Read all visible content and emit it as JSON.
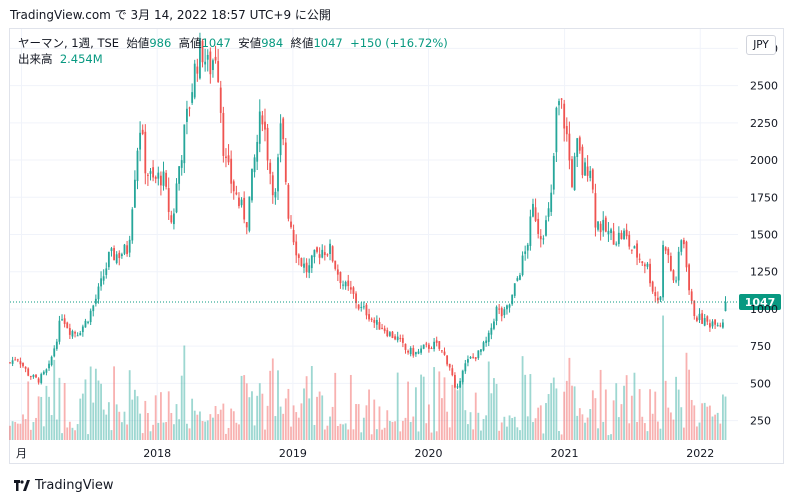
{
  "header": {
    "source": "TradingView.com",
    "date_text": "で 3月 14, 2022 18:57 UTC+9 に公開"
  },
  "legend": {
    "symbol": "ヤーマン, 1週, TSE",
    "open_label": "始値",
    "open": "986",
    "high_label": "高値",
    "high": "1047",
    "low_label": "安値",
    "low": "984",
    "close_label": "終値",
    "close": "1047",
    "change": "+150 (+16.72%)",
    "volume_label": "出来高",
    "volume": "2.454M"
  },
  "currency": "JPY",
  "footer": {
    "brand": "TradingView"
  },
  "colors": {
    "up": "#26a69a",
    "down": "#ef5350",
    "price_line": "#089981",
    "grid": "#f0f3fa"
  },
  "chart_data": {
    "type": "candlestick",
    "price_label": "1047",
    "ylim": [
      120,
      2880
    ],
    "y_ticks": [
      250,
      500,
      750,
      1000,
      1250,
      1500,
      1750,
      2000,
      2250,
      2500,
      2750
    ],
    "x_ticks": [
      {
        "label": "月",
        "date": "2017-01"
      },
      {
        "label": "2018",
        "date": "2018-01"
      },
      {
        "label": "2019",
        "date": "2019-01"
      },
      {
        "label": "2020",
        "date": "2020-01"
      },
      {
        "label": "2021",
        "date": "2021-01"
      },
      {
        "label": "2022",
        "date": "2022-01"
      }
    ],
    "price_path": [
      [
        "2016-12-01",
        640
      ],
      [
        "2016-12-20",
        680
      ],
      [
        "2017-01-20",
        560
      ],
      [
        "2017-02-15",
        520
      ],
      [
        "2017-03-15",
        600
      ],
      [
        "2017-04-01",
        760
      ],
      [
        "2017-04-20",
        960
      ],
      [
        "2017-05-10",
        860
      ],
      [
        "2017-05-30",
        840
      ],
      [
        "2017-06-20",
        900
      ],
      [
        "2017-07-10",
        1000
      ],
      [
        "2017-08-01",
        1150
      ],
      [
        "2017-08-25",
        1350
      ],
      [
        "2017-09-20",
        1370
      ],
      [
        "2017-10-15",
        1400
      ],
      [
        "2017-11-01",
        1900
      ],
      [
        "2017-11-15",
        2250
      ],
      [
        "2017-12-01",
        1950
      ],
      [
        "2017-12-20",
        1850
      ],
      [
        "2018-01-15",
        1900
      ],
      [
        "2018-02-10",
        1550
      ],
      [
        "2018-02-25",
        1900
      ],
      [
        "2018-03-20",
        2250
      ],
      [
        "2018-04-15",
        2650
      ],
      [
        "2018-05-01",
        2750
      ],
      [
        "2018-05-20",
        2600
      ],
      [
        "2018-06-10",
        2750
      ],
      [
        "2018-07-01",
        2000
      ],
      [
        "2018-07-20",
        1850
      ],
      [
        "2018-08-10",
        1700
      ],
      [
        "2018-08-30",
        1600
      ],
      [
        "2018-09-20",
        2000
      ],
      [
        "2018-10-10",
        2350
      ],
      [
        "2018-10-30",
        1950
      ],
      [
        "2018-11-15",
        1750
      ],
      [
        "2018-12-01",
        2250
      ],
      [
        "2018-12-20",
        1650
      ],
      [
        "2019-01-15",
        1350
      ],
      [
        "2019-02-10",
        1250
      ],
      [
        "2019-03-01",
        1350
      ],
      [
        "2019-03-20",
        1400
      ],
      [
        "2019-04-10",
        1400
      ],
      [
        "2019-05-01",
        1250
      ],
      [
        "2019-05-20",
        1150
      ],
      [
        "2019-06-10",
        1100
      ],
      [
        "2019-07-01",
        1000
      ],
      [
        "2019-07-20",
        980
      ],
      [
        "2019-08-10",
        900
      ],
      [
        "2019-08-30",
        880
      ],
      [
        "2019-09-20",
        830
      ],
      [
        "2019-10-10",
        800
      ],
      [
        "2019-11-01",
        720
      ],
      [
        "2019-12-01",
        700
      ],
      [
        "2019-12-20",
        740
      ],
      [
        "2020-01-20",
        760
      ],
      [
        "2020-02-10",
        700
      ],
      [
        "2020-03-01",
        600
      ],
      [
        "2020-03-15",
        420
      ],
      [
        "2020-04-01",
        600
      ],
      [
        "2020-04-20",
        660
      ],
      [
        "2020-05-15",
        700
      ],
      [
        "2020-06-10",
        800
      ],
      [
        "2020-07-01",
        1000
      ],
      [
        "2020-07-20",
        950
      ],
      [
        "2020-08-10",
        1050
      ],
      [
        "2020-09-01",
        1250
      ],
      [
        "2020-09-20",
        1400
      ],
      [
        "2020-10-10",
        1700
      ],
      [
        "2020-10-25",
        1500
      ],
      [
        "2020-11-10",
        1550
      ],
      [
        "2020-11-25",
        1700
      ],
      [
        "2020-12-10",
        2300
      ],
      [
        "2020-12-20",
        2400
      ],
      [
        "2021-01-05",
        2200
      ],
      [
        "2021-01-20",
        1850
      ],
      [
        "2021-02-05",
        2100
      ],
      [
        "2021-02-20",
        1900
      ],
      [
        "2021-03-10",
        2000
      ],
      [
        "2021-03-25",
        1600
      ],
      [
        "2021-04-10",
        1550
      ],
      [
        "2021-05-01",
        1500
      ],
      [
        "2021-05-20",
        1480
      ],
      [
        "2021-06-10",
        1500
      ],
      [
        "2021-07-01",
        1400
      ],
      [
        "2021-07-20",
        1350
      ],
      [
        "2021-08-10",
        1300
      ],
      [
        "2021-08-30",
        1100
      ],
      [
        "2021-09-15",
        1050
      ],
      [
        "2021-09-25",
        1500
      ],
      [
        "2021-10-10",
        1300
      ],
      [
        "2021-10-25",
        1150
      ],
      [
        "2021-11-10",
        1450
      ],
      [
        "2021-11-20",
        1450
      ],
      [
        "2021-12-05",
        1050
      ],
      [
        "2021-12-20",
        950
      ],
      [
        "2022-01-10",
        920
      ],
      [
        "2022-01-25",
        900
      ],
      [
        "2022-02-10",
        930
      ],
      [
        "2022-02-28",
        897
      ],
      [
        "2022-03-14",
        1047
      ]
    ]
  }
}
